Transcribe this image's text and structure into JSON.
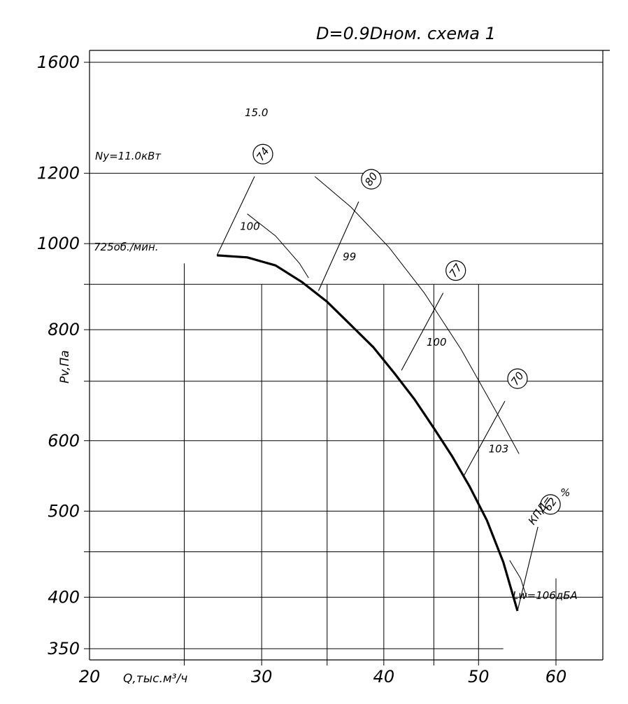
{
  "chart_data": {
    "type": "line",
    "title": "D=0.9Dном. схема 1",
    "xlabel": "Q,тыс.м³/ч",
    "ylabel": "Pv,Па",
    "x_scale": "log",
    "y_scale": "log",
    "xlim": [
      20,
      67
    ],
    "ylim": [
      340,
      1650
    ],
    "x_ticks": [
      20,
      30,
      40,
      50,
      60
    ],
    "y_ticks": [
      350,
      400,
      500,
      600,
      800,
      1000,
      1200,
      1600
    ],
    "grid": true,
    "pressure_curve": {
      "label": "725об./мин.",
      "points": [
        [
          27.0,
          970
        ],
        [
          29.0,
          965
        ],
        [
          31.0,
          945
        ],
        [
          33.0,
          905
        ],
        [
          35.0,
          860
        ],
        [
          37.0,
          810
        ],
        [
          39.0,
          765
        ],
        [
          41.0,
          715
        ],
        [
          43.0,
          668
        ],
        [
          45.0,
          620
        ],
        [
          47.0,
          576
        ],
        [
          49.0,
          532
        ],
        [
          51.0,
          488
        ],
        [
          53.0,
          438
        ],
        [
          54.8,
          386
        ]
      ]
    },
    "power_curve": {
      "label": "15.0",
      "points": [
        [
          34.0,
          1190
        ],
        [
          37.0,
          1100
        ],
        [
          40.5,
          990
        ],
        [
          44.0,
          880
        ],
        [
          48.0,
          760
        ],
        [
          52.0,
          650
        ],
        [
          55.0,
          580
        ]
      ]
    },
    "power_label": "Ny=11.0кВт",
    "efficiency_rays": [
      {
        "efficiency": "74",
        "noise": "100",
        "start": [
          27.0,
          970
        ],
        "end": [
          29.5,
          1190
        ]
      },
      {
        "efficiency": "80",
        "noise": "99",
        "start": [
          34.3,
          885
        ],
        "end": [
          37.7,
          1115
        ]
      },
      {
        "efficiency": "77",
        "noise": "100",
        "start": [
          41.7,
          720
        ],
        "end": [
          46.0,
          880
        ]
      },
      {
        "efficiency": "70",
        "noise": "103",
        "start": [
          48.3,
          548
        ],
        "end": [
          53.2,
          665
        ]
      },
      {
        "efficiency": "62",
        "noise": "106",
        "start": [
          54.8,
          386
        ],
        "end": [
          57.5,
          480
        ]
      }
    ],
    "efficiency_prefix": "КПД=",
    "efficiency_unit": "%",
    "noise_label": "Lw=106дБА"
  }
}
